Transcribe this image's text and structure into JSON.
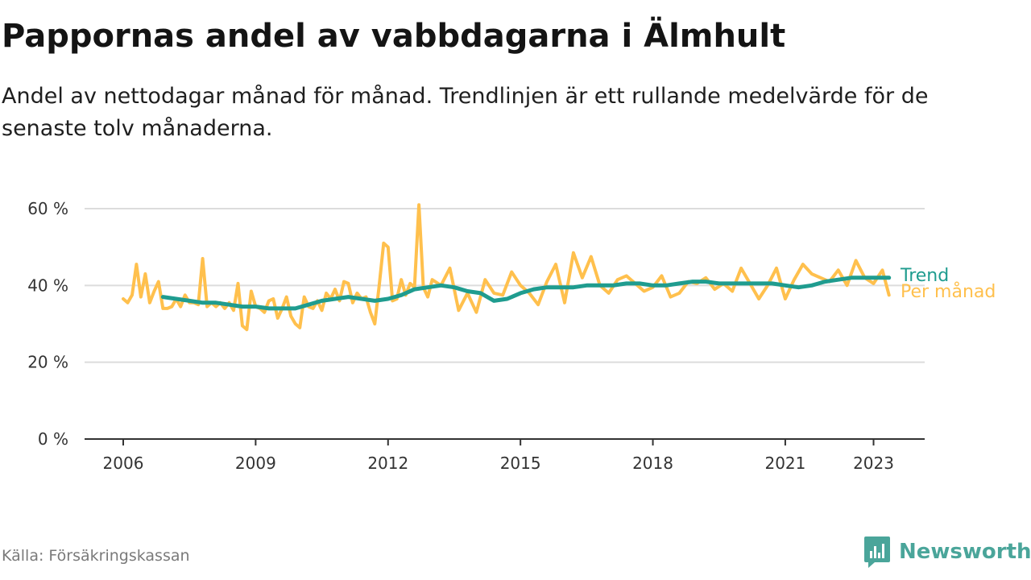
{
  "title": "Pappornas andel av vabbdagarna i Älmhult",
  "subtitle": "Andel av nettodagar månad för månad. Trendlinjen är ett rullande medelvärde för de senaste tolv månaderna.",
  "source": "Källa: Försäkringskassan",
  "brand": {
    "name": "Newsworthy",
    "icon": "bar-chart-speech-bubble-icon",
    "color": "#4aa59a"
  },
  "chart_data": {
    "type": "line",
    "title": "Pappornas andel av vabbdagarna i Älmhult",
    "xlabel": "",
    "ylabel": "",
    "xlim": [
      2006,
      2024
    ],
    "ylim": [
      0,
      60
    ],
    "grid": true,
    "x_ticks": [
      2006,
      2009,
      2012,
      2015,
      2018,
      2021,
      2023
    ],
    "x_tick_labels": [
      "2006",
      "2009",
      "2012",
      "2015",
      "2018",
      "2021",
      "2023"
    ],
    "y_ticks": [
      0,
      20,
      40,
      60
    ],
    "y_tick_labels": [
      "0 %",
      "20 %",
      "40 %",
      "60 %"
    ],
    "legend": "direct labels at right end of lines",
    "series": [
      {
        "name": "Per månad",
        "color": "#ffc04d",
        "x": [
          2006.0,
          2006.1,
          2006.2,
          2006.3,
          2006.4,
          2006.5,
          2006.6,
          2006.7,
          2006.8,
          2006.9,
          2007.0,
          2007.1,
          2007.2,
          2007.3,
          2007.4,
          2007.5,
          2007.6,
          2007.7,
          2007.8,
          2007.9,
          2008.0,
          2008.1,
          2008.2,
          2008.3,
          2008.4,
          2008.5,
          2008.6,
          2008.7,
          2008.8,
          2008.9,
          2009.0,
          2009.1,
          2009.2,
          2009.3,
          2009.4,
          2009.5,
          2009.6,
          2009.7,
          2009.8,
          2009.9,
          2010.0,
          2010.1,
          2010.2,
          2010.3,
          2010.4,
          2010.5,
          2010.6,
          2010.7,
          2010.8,
          2010.9,
          2011.0,
          2011.1,
          2011.2,
          2011.3,
          2011.4,
          2011.5,
          2011.6,
          2011.7,
          2011.8,
          2011.9,
          2012.0,
          2012.1,
          2012.2,
          2012.3,
          2012.4,
          2012.5,
          2012.6,
          2012.7,
          2012.8,
          2012.9,
          2013.0,
          2013.2,
          2013.4,
          2013.6,
          2013.8,
          2014.0,
          2014.2,
          2014.4,
          2014.6,
          2014.8,
          2015.0,
          2015.2,
          2015.4,
          2015.6,
          2015.8,
          2016.0,
          2016.2,
          2016.4,
          2016.6,
          2016.8,
          2017.0,
          2017.2,
          2017.4,
          2017.6,
          2017.8,
          2018.0,
          2018.2,
          2018.4,
          2018.6,
          2018.8,
          2019.0,
          2019.2,
          2019.4,
          2019.6,
          2019.8,
          2020.0,
          2020.2,
          2020.4,
          2020.6,
          2020.8,
          2021.0,
          2021.2,
          2021.4,
          2021.6,
          2021.8,
          2022.0,
          2022.2,
          2022.4,
          2022.6,
          2022.8,
          2023.0,
          2023.2,
          2023.35
        ],
        "values": [
          36.5,
          35.5,
          37.5,
          45.5,
          37.0,
          43.0,
          35.5,
          38.5,
          41.0,
          34.0,
          34.0,
          34.5,
          36.5,
          34.5,
          37.5,
          35.5,
          35.5,
          35.0,
          47.0,
          34.5,
          35.5,
          34.5,
          35.5,
          34.0,
          35.5,
          33.5,
          40.5,
          29.5,
          28.5,
          38.5,
          34.5,
          34.0,
          33.0,
          36.0,
          36.5,
          31.5,
          34.0,
          37.0,
          32.0,
          30.0,
          29.0,
          37.0,
          34.5,
          34.0,
          36.0,
          33.5,
          38.0,
          36.5,
          39.0,
          36.0,
          41.0,
          40.5,
          35.5,
          38.0,
          36.5,
          37.0,
          33.0,
          30.0,
          40.0,
          51.0,
          50.0,
          36.0,
          36.5,
          41.5,
          37.5,
          40.5,
          39.5,
          61.0,
          39.5,
          37.0,
          41.5,
          40.0,
          44.5,
          33.5,
          38.0,
          33.0,
          41.5,
          38.0,
          37.5,
          43.5,
          40.0,
          38.0,
          35.0,
          41.0,
          45.5,
          35.5,
          48.5,
          42.0,
          47.5,
          40.0,
          38.0,
          41.5,
          42.5,
          40.5,
          38.5,
          39.5,
          42.5,
          37.0,
          38.0,
          41.0,
          40.5,
          42.0,
          39.0,
          40.5,
          38.5,
          44.5,
          40.5,
          36.5,
          40.0,
          44.5,
          36.5,
          41.5,
          45.5,
          43.0,
          42.0,
          41.0,
          44.0,
          40.0,
          46.5,
          42.0,
          40.5,
          44.0,
          37.5
        ],
        "note": "monthly values approximated from plot"
      },
      {
        "name": "Trend",
        "color": "#1f9c8f",
        "x": [
          2006.9,
          2007.2,
          2007.5,
          2007.8,
          2008.1,
          2008.4,
          2008.7,
          2009.0,
          2009.3,
          2009.6,
          2009.9,
          2010.2,
          2010.5,
          2010.8,
          2011.1,
          2011.4,
          2011.7,
          2012.0,
          2012.3,
          2012.6,
          2012.9,
          2013.2,
          2013.5,
          2013.8,
          2014.1,
          2014.4,
          2014.7,
          2015.0,
          2015.3,
          2015.6,
          2015.9,
          2016.2,
          2016.5,
          2016.8,
          2017.1,
          2017.4,
          2017.7,
          2018.0,
          2018.3,
          2018.6,
          2018.9,
          2019.2,
          2019.5,
          2019.8,
          2020.1,
          2020.4,
          2020.7,
          2021.0,
          2021.3,
          2021.6,
          2021.9,
          2022.2,
          2022.5,
          2022.8,
          2023.1,
          2023.35
        ],
        "values": [
          37.0,
          36.5,
          36.0,
          35.5,
          35.5,
          35.0,
          34.5,
          34.5,
          34.0,
          34.0,
          34.0,
          35.0,
          36.0,
          36.5,
          37.0,
          36.5,
          36.0,
          36.5,
          37.5,
          39.0,
          39.5,
          40.0,
          39.5,
          38.5,
          38.0,
          36.0,
          36.5,
          38.0,
          39.0,
          39.5,
          39.5,
          39.5,
          40.0,
          40.0,
          40.0,
          40.5,
          40.5,
          40.0,
          40.0,
          40.5,
          41.0,
          41.0,
          40.5,
          40.5,
          40.5,
          40.5,
          40.5,
          40.0,
          39.5,
          40.0,
          41.0,
          41.5,
          42.0,
          42.0,
          42.0,
          42.0
        ],
        "note": "12-month rolling average approximated from plot"
      }
    ]
  }
}
